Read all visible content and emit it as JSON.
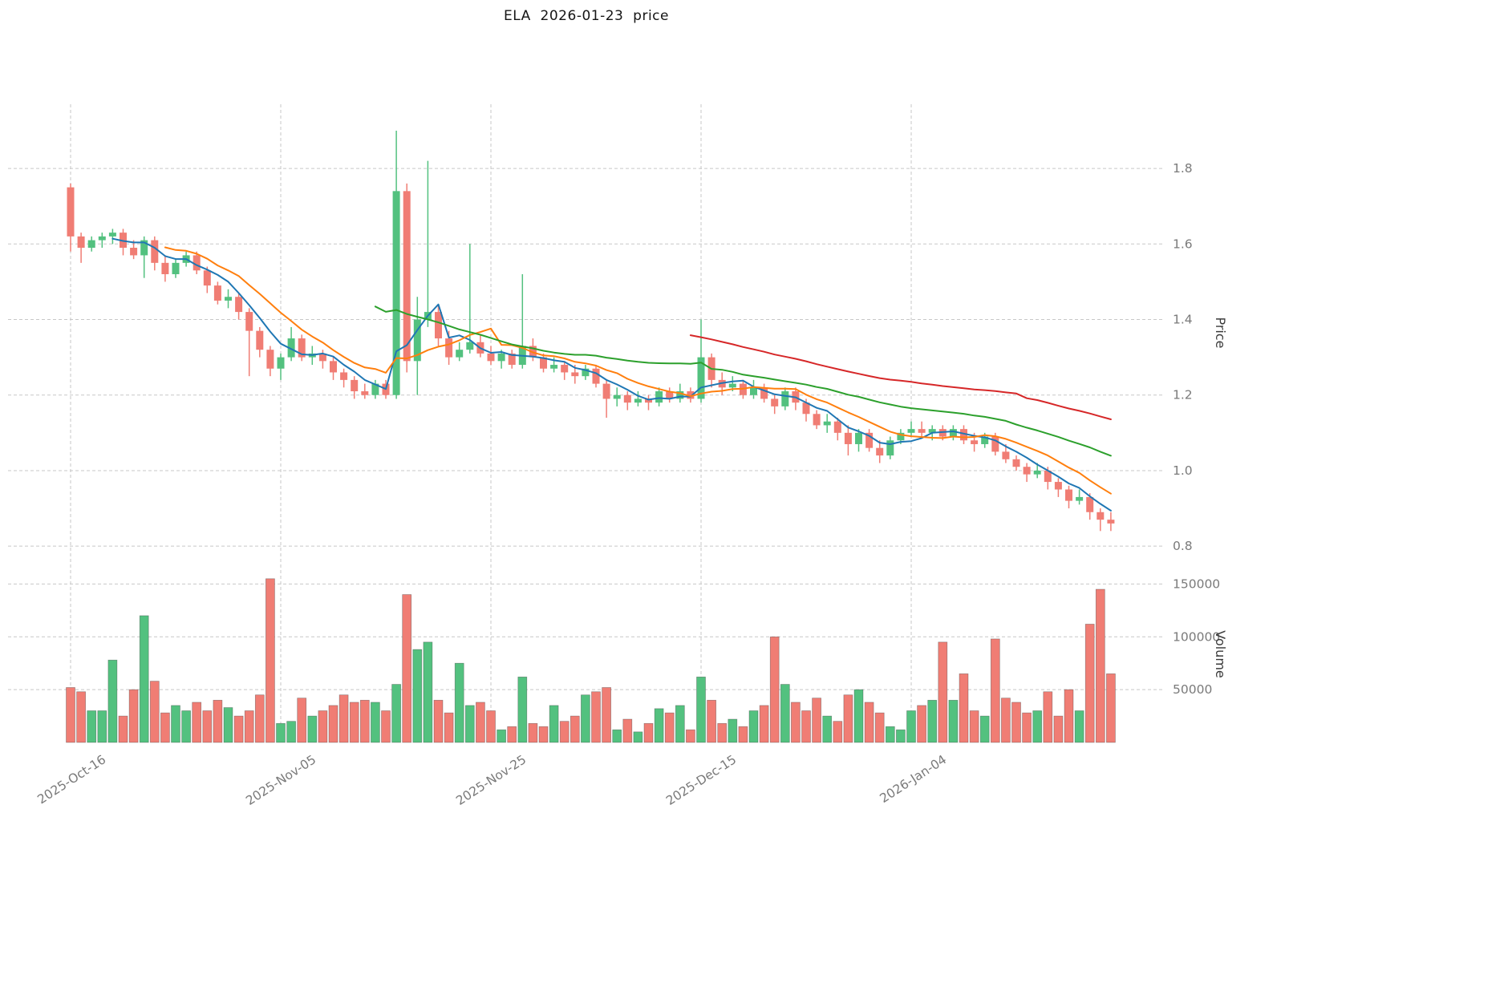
{
  "chart_data": {
    "type": "candlestick",
    "title": "ELA  2026-01-23  price",
    "x_ticks": [
      {
        "i": 0,
        "label": "2025-Oct-16"
      },
      {
        "i": 20,
        "label": "2025-Nov-05"
      },
      {
        "i": 40,
        "label": "2025-Nov-25"
      },
      {
        "i": 60,
        "label": "2025-Dec-15"
      },
      {
        "i": 80,
        "label": "2026-Jan-04"
      }
    ],
    "price_axis": {
      "label": "Price",
      "tick_values": [
        1.8,
        1.6,
        1.4,
        1.2,
        1.0,
        0.8
      ],
      "range": [
        0.76,
        1.97
      ],
      "grid": true
    },
    "volume_axis": {
      "label": "Volume",
      "tick_values": [
        150000,
        100000,
        50000
      ],
      "range": [
        0,
        167000
      ],
      "grid": true
    },
    "candles": {
      "open": [
        1.75,
        1.62,
        1.59,
        1.61,
        1.62,
        1.63,
        1.59,
        1.57,
        1.61,
        1.55,
        1.52,
        1.55,
        1.57,
        1.53,
        1.49,
        1.45,
        1.46,
        1.42,
        1.37,
        1.32,
        1.27,
        1.3,
        1.35,
        1.3,
        1.31,
        1.29,
        1.26,
        1.24,
        1.21,
        1.2,
        1.23,
        1.2,
        1.74,
        1.29,
        1.4,
        1.42,
        1.35,
        1.3,
        1.32,
        1.34,
        1.31,
        1.29,
        1.31,
        1.28,
        1.33,
        1.3,
        1.27,
        1.28,
        1.26,
        1.25,
        1.27,
        1.23,
        1.19,
        1.2,
        1.18,
        1.19,
        1.18,
        1.21,
        1.19,
        1.21,
        1.19,
        1.3,
        1.24,
        1.22,
        1.23,
        1.2,
        1.22,
        1.19,
        1.17,
        1.21,
        1.18,
        1.15,
        1.12,
        1.13,
        1.1,
        1.07,
        1.1,
        1.06,
        1.04,
        1.08,
        1.1,
        1.11,
        1.1,
        1.11,
        1.09,
        1.11,
        1.08,
        1.07,
        1.09,
        1.05,
        1.03,
        1.01,
        0.99,
        1.0,
        0.97,
        0.95,
        0.92,
        0.93,
        0.89,
        0.87
      ],
      "high": [
        1.76,
        1.63,
        1.62,
        1.63,
        1.64,
        1.64,
        1.61,
        1.62,
        1.62,
        1.57,
        1.56,
        1.58,
        1.58,
        1.54,
        1.5,
        1.48,
        1.47,
        1.43,
        1.38,
        1.33,
        1.31,
        1.38,
        1.36,
        1.33,
        1.32,
        1.3,
        1.27,
        1.25,
        1.23,
        1.24,
        1.24,
        1.9,
        1.76,
        1.46,
        1.82,
        1.44,
        1.37,
        1.34,
        1.6,
        1.36,
        1.33,
        1.32,
        1.32,
        1.52,
        1.35,
        1.31,
        1.3,
        1.29,
        1.28,
        1.28,
        1.28,
        1.24,
        1.22,
        1.21,
        1.21,
        1.2,
        1.22,
        1.22,
        1.23,
        1.22,
        1.4,
        1.31,
        1.26,
        1.25,
        1.24,
        1.24,
        1.23,
        1.2,
        1.22,
        1.22,
        1.19,
        1.16,
        1.15,
        1.14,
        1.12,
        1.11,
        1.11,
        1.08,
        1.09,
        1.11,
        1.13,
        1.13,
        1.12,
        1.12,
        1.12,
        1.12,
        1.1,
        1.1,
        1.1,
        1.07,
        1.04,
        1.02,
        1.02,
        1.01,
        0.98,
        0.96,
        0.95,
        0.94,
        0.9,
        0.89
      ],
      "low": [
        1.58,
        1.55,
        1.58,
        1.59,
        1.6,
        1.57,
        1.56,
        1.51,
        1.53,
        1.5,
        1.51,
        1.54,
        1.52,
        1.47,
        1.44,
        1.43,
        1.4,
        1.25,
        1.3,
        1.25,
        1.24,
        1.29,
        1.29,
        1.28,
        1.27,
        1.24,
        1.22,
        1.19,
        1.19,
        1.19,
        1.19,
        1.19,
        1.26,
        1.2,
        1.38,
        1.33,
        1.28,
        1.29,
        1.31,
        1.3,
        1.28,
        1.27,
        1.27,
        1.27,
        1.29,
        1.26,
        1.26,
        1.24,
        1.23,
        1.24,
        1.22,
        1.14,
        1.17,
        1.16,
        1.17,
        1.16,
        1.17,
        1.18,
        1.18,
        1.18,
        1.18,
        1.22,
        1.2,
        1.21,
        1.19,
        1.19,
        1.18,
        1.15,
        1.16,
        1.16,
        1.13,
        1.11,
        1.1,
        1.08,
        1.04,
        1.05,
        1.05,
        1.02,
        1.03,
        1.07,
        1.09,
        1.09,
        1.08,
        1.08,
        1.08,
        1.07,
        1.05,
        1.06,
        1.04,
        1.02,
        1.0,
        0.97,
        0.98,
        0.95,
        0.93,
        0.9,
        0.91,
        0.87,
        0.84,
        0.84
      ],
      "close": [
        1.62,
        1.59,
        1.61,
        1.62,
        1.63,
        1.59,
        1.57,
        1.61,
        1.55,
        1.52,
        1.55,
        1.57,
        1.53,
        1.49,
        1.45,
        1.46,
        1.42,
        1.37,
        1.32,
        1.27,
        1.3,
        1.35,
        1.3,
        1.31,
        1.29,
        1.26,
        1.24,
        1.21,
        1.2,
        1.23,
        1.2,
        1.74,
        1.29,
        1.4,
        1.42,
        1.35,
        1.3,
        1.32,
        1.34,
        1.31,
        1.29,
        1.31,
        1.28,
        1.33,
        1.3,
        1.27,
        1.28,
        1.26,
        1.25,
        1.27,
        1.23,
        1.19,
        1.2,
        1.18,
        1.19,
        1.18,
        1.21,
        1.19,
        1.21,
        1.19,
        1.3,
        1.24,
        1.22,
        1.23,
        1.2,
        1.22,
        1.19,
        1.17,
        1.21,
        1.18,
        1.15,
        1.12,
        1.13,
        1.1,
        1.07,
        1.1,
        1.06,
        1.04,
        1.08,
        1.1,
        1.11,
        1.1,
        1.11,
        1.09,
        1.11,
        1.08,
        1.07,
        1.09,
        1.05,
        1.03,
        1.01,
        0.99,
        1.0,
        0.97,
        0.95,
        0.92,
        0.93,
        0.89,
        0.87,
        0.86
      ]
    },
    "volume": [
      52000,
      48000,
      30000,
      30000,
      78000,
      25000,
      50000,
      120000,
      58000,
      28000,
      35000,
      30000,
      38000,
      30000,
      40000,
      33000,
      25000,
      30000,
      45000,
      155000,
      18000,
      20000,
      42000,
      25000,
      30000,
      35000,
      45000,
      38000,
      40000,
      38000,
      30000,
      55000,
      140000,
      88000,
      95000,
      40000,
      28000,
      75000,
      35000,
      38000,
      30000,
      12000,
      15000,
      62000,
      18000,
      15000,
      35000,
      20000,
      25000,
      45000,
      48000,
      52000,
      12000,
      22000,
      10000,
      18000,
      32000,
      28000,
      35000,
      12000,
      62000,
      40000,
      18000,
      22000,
      15000,
      30000,
      35000,
      100000,
      55000,
      38000,
      30000,
      42000,
      25000,
      20000,
      45000,
      50000,
      38000,
      28000,
      15000,
      12000,
      30000,
      35000,
      40000,
      95000,
      40000,
      65000,
      30000,
      25000,
      98000,
      42000,
      38000,
      28000,
      30000,
      48000,
      25000,
      50000,
      30000,
      112000,
      145000,
      65000
    ],
    "moving_averages": [
      {
        "name": "ma5",
        "period": 5,
        "color": "#1f77b4"
      },
      {
        "name": "ma10",
        "period": 10,
        "color": "#ff7f0e"
      },
      {
        "name": "ma30",
        "period": 30,
        "color": "#2ca02c"
      },
      {
        "name": "ma60",
        "period": 60,
        "color": "#d62728"
      }
    ],
    "colors": {
      "up": "#53c17f",
      "down": "#f07d74",
      "grid": "#c7c7c7",
      "tick_text": "#7a7a7a",
      "title_text": "#151515"
    },
    "legend_position": "none"
  }
}
